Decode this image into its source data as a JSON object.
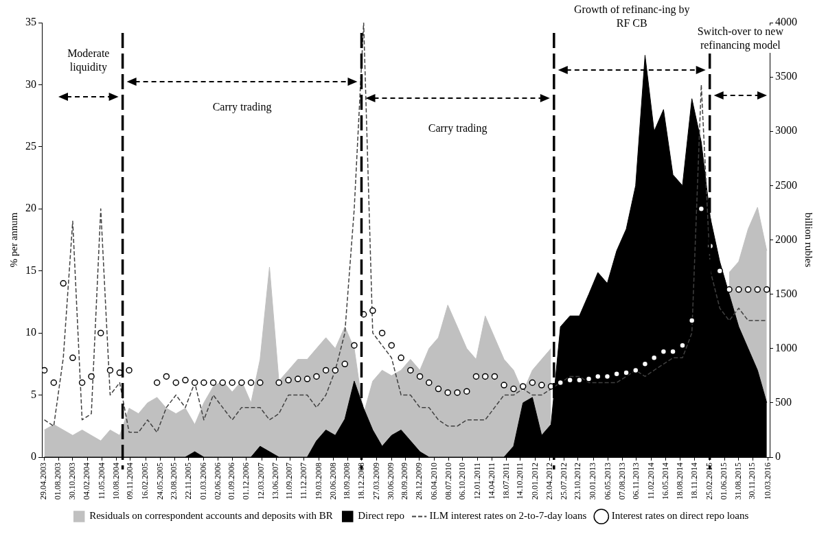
{
  "chart_data": {
    "type": "line",
    "xlabel": null,
    "ylabel": "% per annum",
    "y2label": "billion rubles",
    "x": [
      "2003-05",
      "2003-07",
      "2003-09",
      "2003-11",
      "2004-01",
      "2004-03",
      "2004-05",
      "2004-07",
      "2004-09",
      "2004-11",
      "2005-01",
      "2005-03",
      "2005-05",
      "2005-07",
      "2005-09",
      "2005-11",
      "2006-01",
      "2006-03",
      "2006-05",
      "2006-07",
      "2006-09",
      "2006-11",
      "2007-01",
      "2007-03",
      "2007-05",
      "2007-07",
      "2007-09",
      "2007-11",
      "2008-01",
      "2008-03",
      "2008-05",
      "2008-07",
      "2008-09",
      "2008-11",
      "2009-01",
      "2009-03",
      "2009-05",
      "2009-07",
      "2009-09",
      "2009-11",
      "2010-01",
      "2010-03",
      "2010-05",
      "2010-07",
      "2010-09",
      "2010-11",
      "2011-01",
      "2011-03",
      "2011-05",
      "2011-07",
      "2011-09",
      "2011-11",
      "2012-01",
      "2012-03",
      "2012-05",
      "2012-07",
      "2012-09",
      "2012-11",
      "2013-01",
      "2013-03",
      "2013-05",
      "2013-07",
      "2013-09",
      "2013-11",
      "2014-01",
      "2014-03",
      "2014-05",
      "2014-07",
      "2014-09",
      "2014-11",
      "2015-01",
      "2015-03",
      "2015-05",
      "2015-07",
      "2015-09",
      "2015-11",
      "2016-01",
      "2016-03"
    ],
    "series": [
      {
        "name": "Residuals on correspondent accounts and deposits with BR",
        "type": "area",
        "axis": "y2",
        "color": "#c0c0c0",
        "values": [
          250,
          300,
          250,
          200,
          250,
          200,
          150,
          250,
          200,
          450,
          400,
          500,
          550,
          450,
          400,
          450,
          300,
          500,
          650,
          700,
          600,
          700,
          500,
          900,
          1750,
          700,
          800,
          900,
          900,
          1000,
          1100,
          1000,
          1200,
          1000,
          400,
          700,
          800,
          750,
          800,
          900,
          800,
          1000,
          1100,
          1400,
          1200,
          1000,
          900,
          1300,
          1100,
          900,
          800,
          600,
          800,
          900,
          1000,
          null,
          null,
          null,
          null,
          null,
          null,
          null,
          null,
          null,
          null,
          null,
          null,
          null,
          null,
          null,
          null,
          null,
          null,
          1700,
          1800,
          2100,
          2300,
          1900
        ]
      },
      {
        "name": "Direct repo",
        "type": "area",
        "axis": "y2",
        "color": "#000000",
        "values": [
          0,
          0,
          0,
          0,
          0,
          0,
          0,
          0,
          0,
          0,
          0,
          0,
          0,
          0,
          0,
          0,
          50,
          0,
          0,
          0,
          0,
          0,
          0,
          100,
          50,
          0,
          0,
          0,
          0,
          150,
          250,
          200,
          350,
          700,
          450,
          250,
          100,
          200,
          250,
          150,
          50,
          0,
          0,
          0,
          0,
          0,
          0,
          0,
          0,
          0,
          100,
          500,
          550,
          200,
          300,
          1200,
          1300,
          1300,
          1500,
          1700,
          1600,
          1900,
          2100,
          2500,
          3700,
          3000,
          3200,
          2600,
          2500,
          3300,
          2900,
          2200,
          1800,
          1500,
          1200,
          1000,
          800,
          500
        ]
      },
      {
        "name": "ILM interest rates on 2-to-7-day loans",
        "type": "line",
        "line_style": "dashed",
        "color": "#404040",
        "values": [
          3,
          2.5,
          8,
          19,
          3,
          3.5,
          20,
          5,
          6,
          2,
          2,
          3,
          2,
          4,
          5,
          4,
          6,
          3,
          5,
          4,
          3,
          4,
          4,
          4,
          3,
          3.5,
          5,
          5,
          5,
          4,
          5,
          7,
          10,
          20,
          35,
          10,
          9,
          8,
          5,
          5,
          4,
          4,
          3,
          2.5,
          2.5,
          3,
          3,
          3,
          4,
          5,
          5,
          5.5,
          5,
          5,
          5.5,
          6,
          6.5,
          6.5,
          6,
          6,
          6,
          6,
          6.5,
          7,
          6.5,
          7,
          7.5,
          8,
          8,
          10,
          30,
          15,
          12,
          11,
          12,
          11,
          11,
          11
        ]
      },
      {
        "name": "Interest rates on direct repo loans",
        "type": "scatter",
        "marker": "circle",
        "color": "#000000",
        "values": [
          7,
          6,
          14,
          8,
          6,
          6.5,
          10,
          7,
          6.8,
          7,
          null,
          null,
          6,
          6.5,
          6,
          6.2,
          6,
          6,
          6,
          6,
          6,
          6,
          6,
          6,
          null,
          6,
          6.2,
          6.3,
          6.3,
          6.5,
          7,
          7,
          7.5,
          9,
          11.5,
          11.8,
          10,
          9,
          8,
          7,
          6.5,
          6,
          5.5,
          5.2,
          5.2,
          5.3,
          6.5,
          6.5,
          6.5,
          5.8,
          5.5,
          5.7,
          6,
          5.8,
          5.7,
          6,
          6.2,
          6.2,
          6.3,
          6.5,
          6.5,
          6.7,
          6.8,
          7,
          7.5,
          8,
          8.5,
          8.5,
          9,
          11,
          20,
          17,
          15,
          13.5,
          13.5,
          13.5,
          13.5,
          13.5
        ]
      }
    ],
    "xlim": [
      "2003-04-15",
      "2016-03-20"
    ],
    "xticks": [
      {
        "value": "2003-04-29",
        "label": "29.04.2003"
      },
      {
        "value": "2003-08-01",
        "label": "01.08.2003"
      },
      {
        "value": "2003-10-30",
        "label": "30.10.2003"
      },
      {
        "value": "2004-02-04",
        "label": "04.02.2004"
      },
      {
        "value": "2004-05-11",
        "label": "11.05.2004"
      },
      {
        "value": "2004-08-10",
        "label": "10.08.2004"
      },
      {
        "value": "2004-11-09",
        "label": "09.11.2004"
      },
      {
        "value": "2005-02-16",
        "label": "16.02.2005"
      },
      {
        "value": "2005-05-24",
        "label": "24.05.2005"
      },
      {
        "value": "2005-08-23",
        "label": "23.08.2005"
      },
      {
        "value": "2005-11-22",
        "label": "22.11.2005"
      },
      {
        "value": "2006-03-01",
        "label": "01.03.2006"
      },
      {
        "value": "2006-06-02",
        "label": "02.06.2006"
      },
      {
        "value": "2006-09-01",
        "label": "01.09.2006"
      },
      {
        "value": "2006-12-01",
        "label": "01.12.2006"
      },
      {
        "value": "2007-03-12",
        "label": "12.03.2007"
      },
      {
        "value": "2007-06-13",
        "label": "13.06.2007"
      },
      {
        "value": "2007-09-11",
        "label": "11.09.2007"
      },
      {
        "value": "2007-12-11",
        "label": "11.12.2007"
      },
      {
        "value": "2008-03-19",
        "label": "19.03.2008"
      },
      {
        "value": "2008-06-20",
        "label": "20.06.2008"
      },
      {
        "value": "2008-09-18",
        "label": "18.09.2008"
      },
      {
        "value": "2008-12-18",
        "label": "18.12.2008"
      },
      {
        "value": "2009-03-27",
        "label": "27.03.2009"
      },
      {
        "value": "2009-06-30",
        "label": "30.06.2009"
      },
      {
        "value": "2009-09-28",
        "label": "28.09.2009"
      },
      {
        "value": "2009-12-28",
        "label": "28.12.2009"
      },
      {
        "value": "2010-04-06",
        "label": "06.04.2010"
      },
      {
        "value": "2010-07-08",
        "label": "08.07.2010"
      },
      {
        "value": "2010-10-06",
        "label": "06.10.2010"
      },
      {
        "value": "2011-01-12",
        "label": "12.01.2011"
      },
      {
        "value": "2011-04-14",
        "label": "14.04.2011"
      },
      {
        "value": "2011-07-18",
        "label": "18.07.2011"
      },
      {
        "value": "2011-10-14",
        "label": "14.10.2011"
      },
      {
        "value": "2012-01-20",
        "label": "20.01.2012"
      },
      {
        "value": "2012-04-23",
        "label": "23.04.2012"
      },
      {
        "value": "2012-07-25",
        "label": "25.07.2012"
      },
      {
        "value": "2012-10-23",
        "label": "23.10.2012"
      },
      {
        "value": "2013-01-30",
        "label": "30.01.2013"
      },
      {
        "value": "2013-05-06",
        "label": "06.05.2013"
      },
      {
        "value": "2013-08-07",
        "label": "07.08.2013"
      },
      {
        "value": "2013-11-06",
        "label": "06.11.2013"
      },
      {
        "value": "2014-02-11",
        "label": "11.02.2014"
      },
      {
        "value": "2014-05-16",
        "label": "16.05.2014"
      },
      {
        "value": "2014-08-18",
        "label": "18.08.2014"
      },
      {
        "value": "2014-11-18",
        "label": "18.11.2014"
      },
      {
        "value": "2015-02-25",
        "label": "25.02.2015"
      },
      {
        "value": "2015-06-01",
        "label": "01.06.2015"
      },
      {
        "value": "2015-08-31",
        "label": "31.08.2015"
      },
      {
        "value": "2015-11-30",
        "label": "30.11.2015"
      },
      {
        "value": "2016-03-10",
        "label": "10.03.2016"
      }
    ],
    "ylim": [
      0,
      35
    ],
    "yticks": [
      0,
      5,
      10,
      15,
      20,
      25,
      30,
      35
    ],
    "y2lim": [
      0,
      4000
    ],
    "y2ticks": [
      0,
      500,
      1000,
      1500,
      2000,
      2500,
      3000,
      3500,
      4000
    ],
    "ref_lines": [
      {
        "axis": "x",
        "value": "2004-09-20",
        "color": "#000000",
        "line_style": "dashed"
      },
      {
        "axis": "x",
        "value": "2008-12-18",
        "color": "#000000",
        "line_style": "dashed"
      },
      {
        "axis": "x",
        "value": "2012-05-20",
        "color": "#000000",
        "line_style": "dashed"
      },
      {
        "axis": "x",
        "value": "2015-02-25",
        "color": "#000000",
        "line_style": "dashed"
      }
    ],
    "annotations": [
      "Moderate liquidity",
      "Carry trading",
      "Carry trading",
      "Growth of refinanc-ing by RF CB",
      "Switch-over to new refinancing model"
    ],
    "grid": false,
    "legend": "bottom"
  }
}
